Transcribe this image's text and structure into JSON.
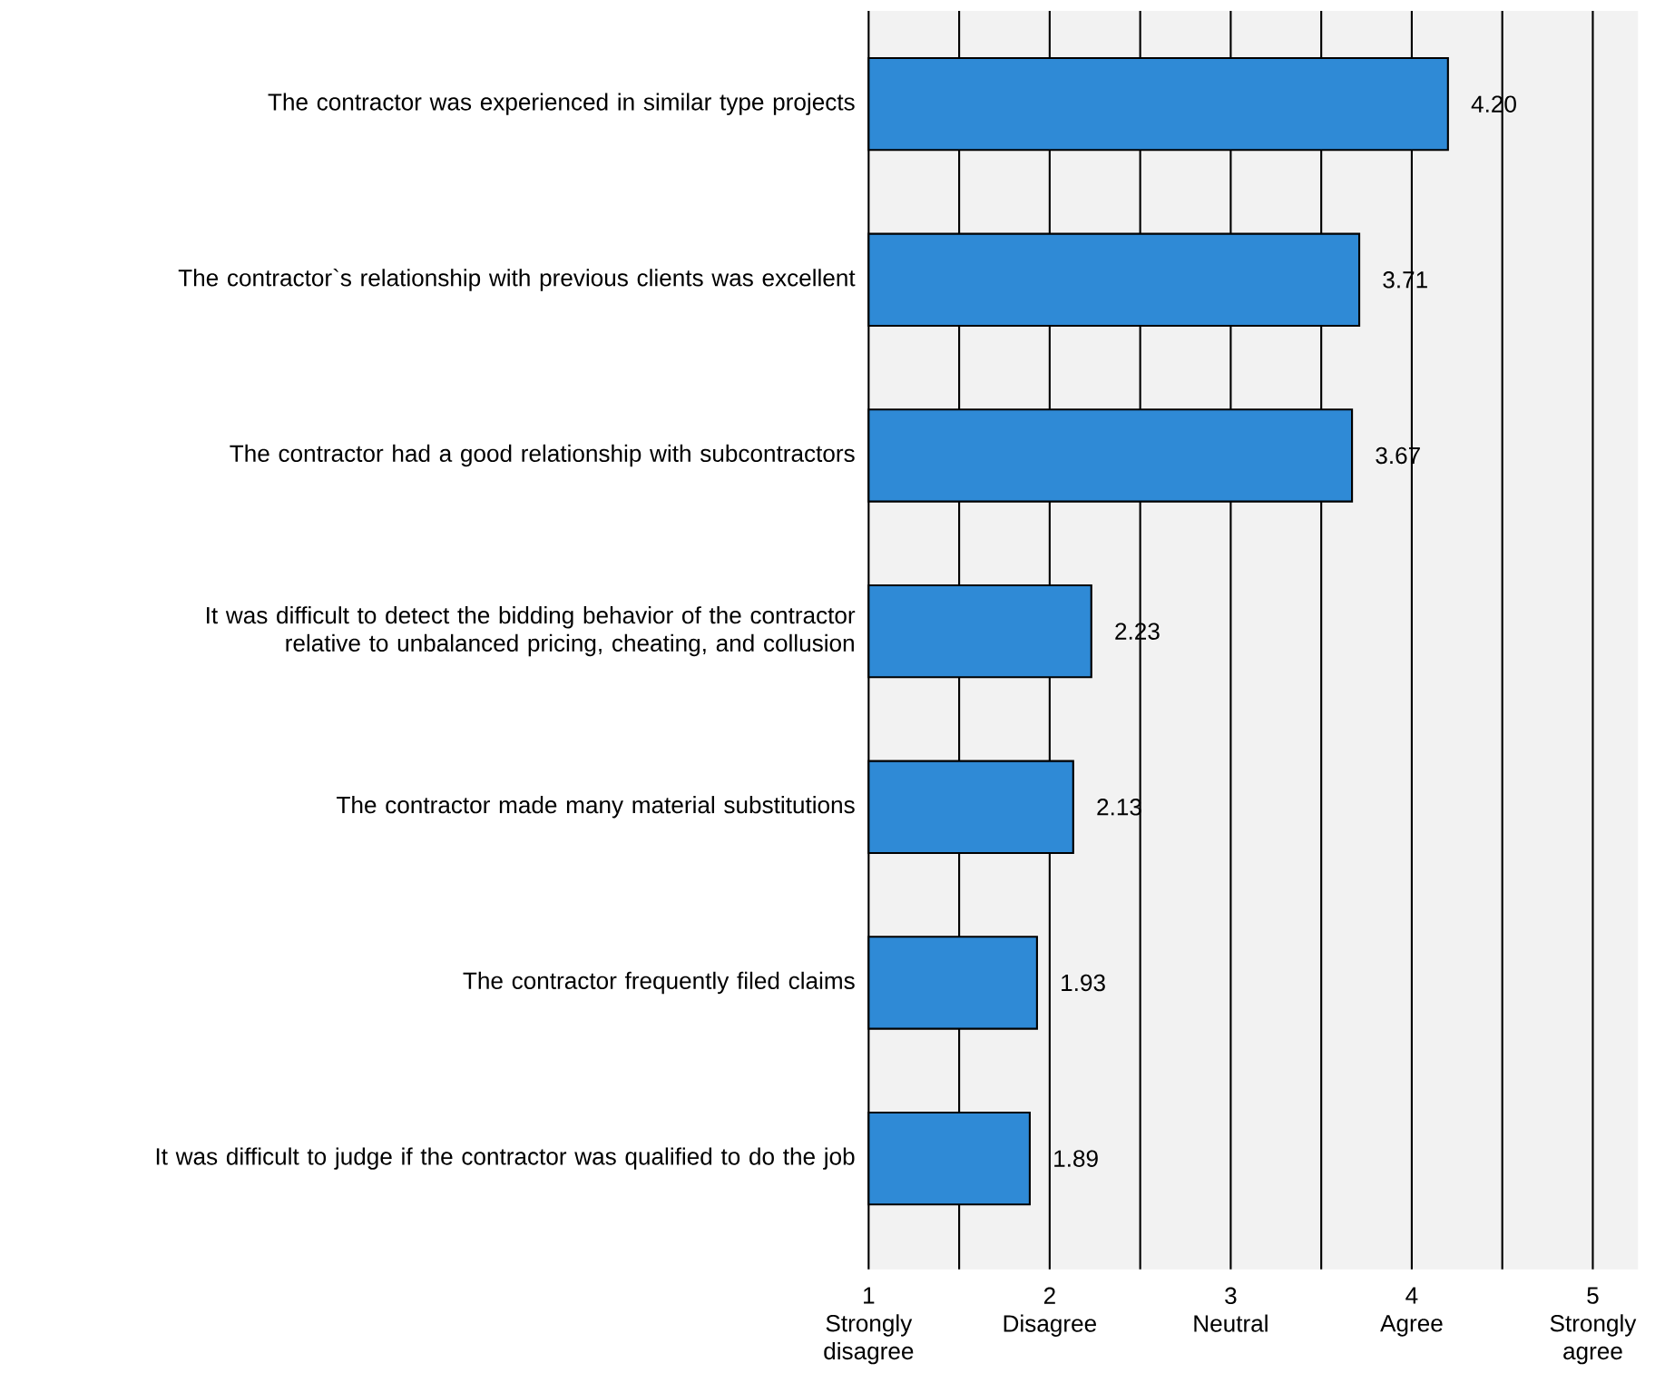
{
  "chart_data": {
    "type": "bar",
    "orientation": "horizontal",
    "categories": [
      "The contractor was experienced in similar type projects",
      "The contractor`s relationship with previous clients was excellent",
      "The contractor had a good relationship with subcontractors",
      "It was difficult to detect the bidding behavior of the contractor relative to unbalanced pricing, cheating, and collusion",
      "The contractor made many material substitutions",
      "The contractor frequently filed claims",
      "It was difficult to judge if the contractor was qualified to do the job"
    ],
    "values": [
      4.2,
      3.71,
      3.67,
      2.23,
      2.13,
      1.93,
      1.89
    ],
    "value_labels": [
      "4.20",
      "3.71",
      "3.67",
      "2.23",
      "2.13",
      "1.93",
      "1.89"
    ],
    "color": "#2f8ad6",
    "xlim": [
      1,
      5.25
    ],
    "xticks": [
      {
        "value": 1,
        "label": "1 Strongly disagree"
      },
      {
        "value": 1.5,
        "label": null
      },
      {
        "value": 2,
        "label": "2 Disagree"
      },
      {
        "value": 2.5,
        "label": null
      },
      {
        "value": 3,
        "label": "3 Neutral"
      },
      {
        "value": 3.5,
        "label": null
      },
      {
        "value": 4,
        "label": "4 Agree"
      },
      {
        "value": 4.5,
        "label": null
      },
      {
        "value": 5,
        "label": "5 Strongly agree"
      }
    ],
    "grid": "x"
  }
}
